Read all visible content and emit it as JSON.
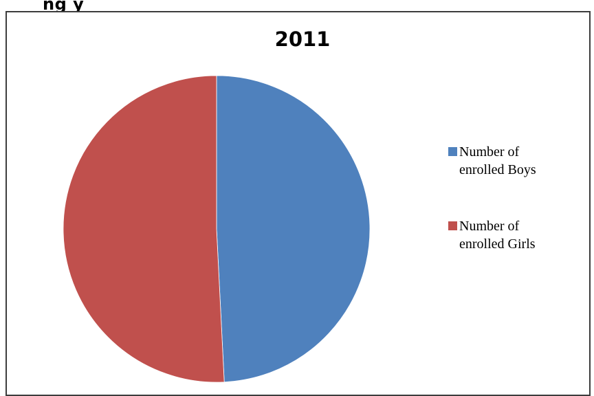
{
  "heading_fragment": "ng              y",
  "chart_data": {
    "type": "pie",
    "title": "2011",
    "legend_position": "right",
    "slices": [
      {
        "label": "Number of enrolled Boys",
        "value": 49.2,
        "color": "#4f81bd"
      },
      {
        "label": "Number of enrolled Girls",
        "value": 50.8,
        "color": "#c0504d"
      }
    ]
  }
}
